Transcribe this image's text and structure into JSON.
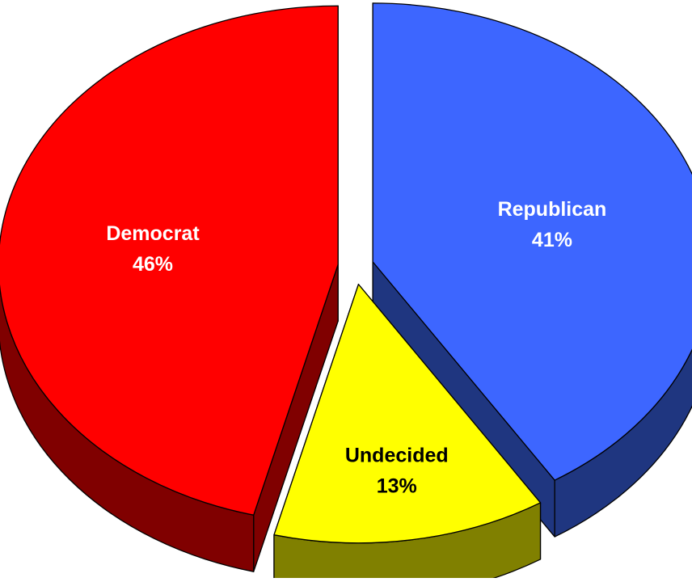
{
  "chart_data": {
    "type": "pie",
    "three_d": true,
    "exploded": true,
    "legend": "none",
    "slices": [
      {
        "label": "Republican",
        "value": 41,
        "value_label": "41%",
        "color": "#3d66ff",
        "side_color": "#1f3680",
        "label_color": "#ffffff"
      },
      {
        "label": "Undecided",
        "value": 13,
        "value_label": "13%",
        "color": "#ffff00",
        "side_color": "#808000",
        "label_color": "#000000"
      },
      {
        "label": "Democrat",
        "value": 46,
        "value_label": "46%",
        "color": "#ff0000",
        "side_color": "#800000",
        "label_color": "#ffffff"
      }
    ]
  }
}
